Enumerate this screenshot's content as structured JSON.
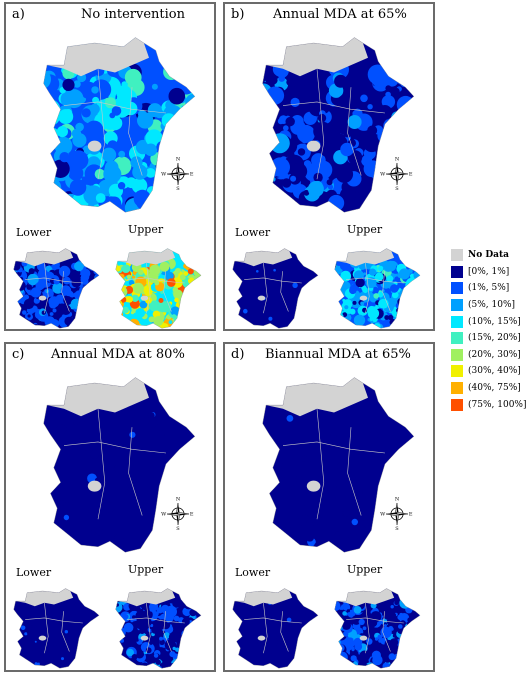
{
  "panels": [
    {
      "letter": "a)",
      "title": "No intervention",
      "main_level": "mixed",
      "lower_level": "low",
      "upper_level": "high",
      "lower_label": "Lower",
      "upper_label": "Upper"
    },
    {
      "letter": "b)",
      "title": "Annual MDA at 65%",
      "main_level": "low",
      "lower_level": "vlow",
      "upper_level": "mixed",
      "lower_label": "Lower",
      "upper_label": "Upper"
    },
    {
      "letter": "c)",
      "title": "Annual MDA at 80%",
      "main_level": "vlow",
      "lower_level": "vlow",
      "upper_level": "low",
      "lower_label": "Lower",
      "upper_label": "Upper"
    },
    {
      "letter": "d)",
      "title": "Biannual MDA at 65%",
      "main_level": "vlow",
      "lower_level": "vlow",
      "upper_level": "low",
      "lower_label": "Lower",
      "upper_label": "Upper"
    }
  ],
  "legend": {
    "items": [
      {
        "label": "No Data",
        "color": "#d3d3d3"
      },
      {
        "label": "[0%, 1%]",
        "color": "#00008f"
      },
      {
        "label": "(1%, 5%]",
        "color": "#0050ff"
      },
      {
        "label": "(5%, 10%]",
        "color": "#00a0ff"
      },
      {
        "label": "(10%, 15%]",
        "color": "#00e8ff"
      },
      {
        "label": "(15%, 20%]",
        "color": "#40f0c0"
      },
      {
        "label": "(20%, 30%]",
        "color": "#a0f060"
      },
      {
        "label": "(30%, 40%]",
        "color": "#f0f000"
      },
      {
        "label": "(40%, 75%]",
        "color": "#ffb000"
      },
      {
        "label": "(75%, 100%]",
        "color": "#ff5000"
      }
    ]
  },
  "compass_labels": {
    "north": "N",
    "south": "S",
    "east": "E",
    "west": "W"
  }
}
